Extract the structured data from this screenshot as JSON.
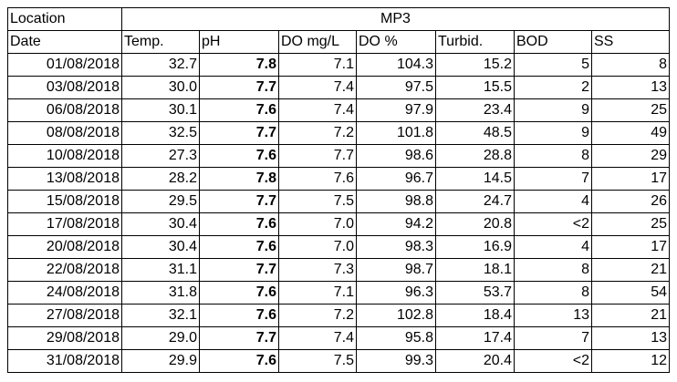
{
  "table": {
    "location_label": "Location",
    "site": "MP3",
    "headers": [
      "Date",
      "Temp.",
      "pH",
      "DO mg/L",
      "DO %",
      "Turbid.",
      "BOD",
      "SS"
    ],
    "rows": [
      [
        "01/08/2018",
        "32.7",
        "7.8",
        "7.1",
        "104.3",
        "15.2",
        "5",
        "8"
      ],
      [
        "03/08/2018",
        "30.0",
        "7.7",
        "7.4",
        "97.5",
        "15.5",
        "2",
        "13"
      ],
      [
        "06/08/2018",
        "30.1",
        "7.6",
        "7.4",
        "97.9",
        "23.4",
        "9",
        "25"
      ],
      [
        "08/08/2018",
        "32.5",
        "7.7",
        "7.2",
        "101.8",
        "48.5",
        "9",
        "49"
      ],
      [
        "10/08/2018",
        "27.3",
        "7.6",
        "7.7",
        "98.6",
        "28.8",
        "8",
        "29"
      ],
      [
        "13/08/2018",
        "28.2",
        "7.8",
        "7.6",
        "96.7",
        "14.5",
        "7",
        "17"
      ],
      [
        "15/08/2018",
        "29.5",
        "7.7",
        "7.5",
        "98.8",
        "24.7",
        "4",
        "26"
      ],
      [
        "17/08/2018",
        "30.4",
        "7.6",
        "7.0",
        "94.2",
        "20.8",
        "<2",
        "25"
      ],
      [
        "20/08/2018",
        "30.4",
        "7.6",
        "7.0",
        "98.3",
        "16.9",
        "4",
        "17"
      ],
      [
        "22/08/2018",
        "31.1",
        "7.7",
        "7.3",
        "98.7",
        "18.1",
        "8",
        "21"
      ],
      [
        "24/08/2018",
        "31.8",
        "7.6",
        "7.1",
        "96.3",
        "53.7",
        "8",
        "54"
      ],
      [
        "27/08/2018",
        "32.1",
        "7.6",
        "7.2",
        "102.8",
        "18.4",
        "13",
        "21"
      ],
      [
        "29/08/2018",
        "29.0",
        "7.7",
        "7.4",
        "95.8",
        "17.4",
        "7",
        "13"
      ],
      [
        "31/08/2018",
        "29.9",
        "7.6",
        "7.5",
        "99.3",
        "20.4",
        "<2",
        "12"
      ]
    ]
  }
}
